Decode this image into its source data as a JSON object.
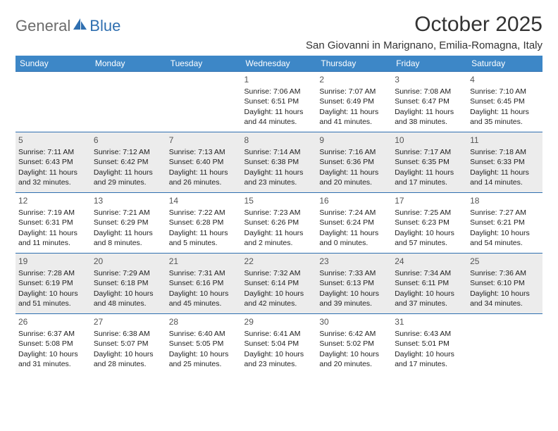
{
  "logo": {
    "general": "General",
    "blue": "Blue"
  },
  "title": "October 2025",
  "location": "San Giovanni in Marignano, Emilia-Romagna, Italy",
  "colors": {
    "header_bg": "#3d87c7",
    "header_border": "#2f6fb0",
    "alt_row_bg": "#ececec",
    "text": "#212121",
    "title_text": "#333333",
    "logo_gray": "#6b6b6b",
    "logo_blue": "#2f6fb0"
  },
  "day_headers": [
    "Sunday",
    "Monday",
    "Tuesday",
    "Wednesday",
    "Thursday",
    "Friday",
    "Saturday"
  ],
  "weeks": [
    {
      "shaded": false,
      "days": [
        null,
        null,
        null,
        {
          "n": "1",
          "sunrise": "7:06 AM",
          "sunset": "6:51 PM",
          "daylight": "11 hours and 44 minutes."
        },
        {
          "n": "2",
          "sunrise": "7:07 AM",
          "sunset": "6:49 PM",
          "daylight": "11 hours and 41 minutes."
        },
        {
          "n": "3",
          "sunrise": "7:08 AM",
          "sunset": "6:47 PM",
          "daylight": "11 hours and 38 minutes."
        },
        {
          "n": "4",
          "sunrise": "7:10 AM",
          "sunset": "6:45 PM",
          "daylight": "11 hours and 35 minutes."
        }
      ]
    },
    {
      "shaded": true,
      "days": [
        {
          "n": "5",
          "sunrise": "7:11 AM",
          "sunset": "6:43 PM",
          "daylight": "11 hours and 32 minutes."
        },
        {
          "n": "6",
          "sunrise": "7:12 AM",
          "sunset": "6:42 PM",
          "daylight": "11 hours and 29 minutes."
        },
        {
          "n": "7",
          "sunrise": "7:13 AM",
          "sunset": "6:40 PM",
          "daylight": "11 hours and 26 minutes."
        },
        {
          "n": "8",
          "sunrise": "7:14 AM",
          "sunset": "6:38 PM",
          "daylight": "11 hours and 23 minutes."
        },
        {
          "n": "9",
          "sunrise": "7:16 AM",
          "sunset": "6:36 PM",
          "daylight": "11 hours and 20 minutes."
        },
        {
          "n": "10",
          "sunrise": "7:17 AM",
          "sunset": "6:35 PM",
          "daylight": "11 hours and 17 minutes."
        },
        {
          "n": "11",
          "sunrise": "7:18 AM",
          "sunset": "6:33 PM",
          "daylight": "11 hours and 14 minutes."
        }
      ]
    },
    {
      "shaded": false,
      "days": [
        {
          "n": "12",
          "sunrise": "7:19 AM",
          "sunset": "6:31 PM",
          "daylight": "11 hours and 11 minutes."
        },
        {
          "n": "13",
          "sunrise": "7:21 AM",
          "sunset": "6:29 PM",
          "daylight": "11 hours and 8 minutes."
        },
        {
          "n": "14",
          "sunrise": "7:22 AM",
          "sunset": "6:28 PM",
          "daylight": "11 hours and 5 minutes."
        },
        {
          "n": "15",
          "sunrise": "7:23 AM",
          "sunset": "6:26 PM",
          "daylight": "11 hours and 2 minutes."
        },
        {
          "n": "16",
          "sunrise": "7:24 AM",
          "sunset": "6:24 PM",
          "daylight": "11 hours and 0 minutes."
        },
        {
          "n": "17",
          "sunrise": "7:25 AM",
          "sunset": "6:23 PM",
          "daylight": "10 hours and 57 minutes."
        },
        {
          "n": "18",
          "sunrise": "7:27 AM",
          "sunset": "6:21 PM",
          "daylight": "10 hours and 54 minutes."
        }
      ]
    },
    {
      "shaded": true,
      "days": [
        {
          "n": "19",
          "sunrise": "7:28 AM",
          "sunset": "6:19 PM",
          "daylight": "10 hours and 51 minutes."
        },
        {
          "n": "20",
          "sunrise": "7:29 AM",
          "sunset": "6:18 PM",
          "daylight": "10 hours and 48 minutes."
        },
        {
          "n": "21",
          "sunrise": "7:31 AM",
          "sunset": "6:16 PM",
          "daylight": "10 hours and 45 minutes."
        },
        {
          "n": "22",
          "sunrise": "7:32 AM",
          "sunset": "6:14 PM",
          "daylight": "10 hours and 42 minutes."
        },
        {
          "n": "23",
          "sunrise": "7:33 AM",
          "sunset": "6:13 PM",
          "daylight": "10 hours and 39 minutes."
        },
        {
          "n": "24",
          "sunrise": "7:34 AM",
          "sunset": "6:11 PM",
          "daylight": "10 hours and 37 minutes."
        },
        {
          "n": "25",
          "sunrise": "7:36 AM",
          "sunset": "6:10 PM",
          "daylight": "10 hours and 34 minutes."
        }
      ]
    },
    {
      "shaded": false,
      "days": [
        {
          "n": "26",
          "sunrise": "6:37 AM",
          "sunset": "5:08 PM",
          "daylight": "10 hours and 31 minutes."
        },
        {
          "n": "27",
          "sunrise": "6:38 AM",
          "sunset": "5:07 PM",
          "daylight": "10 hours and 28 minutes."
        },
        {
          "n": "28",
          "sunrise": "6:40 AM",
          "sunset": "5:05 PM",
          "daylight": "10 hours and 25 minutes."
        },
        {
          "n": "29",
          "sunrise": "6:41 AM",
          "sunset": "5:04 PM",
          "daylight": "10 hours and 23 minutes."
        },
        {
          "n": "30",
          "sunrise": "6:42 AM",
          "sunset": "5:02 PM",
          "daylight": "10 hours and 20 minutes."
        },
        {
          "n": "31",
          "sunrise": "6:43 AM",
          "sunset": "5:01 PM",
          "daylight": "10 hours and 17 minutes."
        },
        null
      ]
    }
  ],
  "labels": {
    "sunrise": "Sunrise:",
    "sunset": "Sunset:",
    "daylight": "Daylight:"
  }
}
